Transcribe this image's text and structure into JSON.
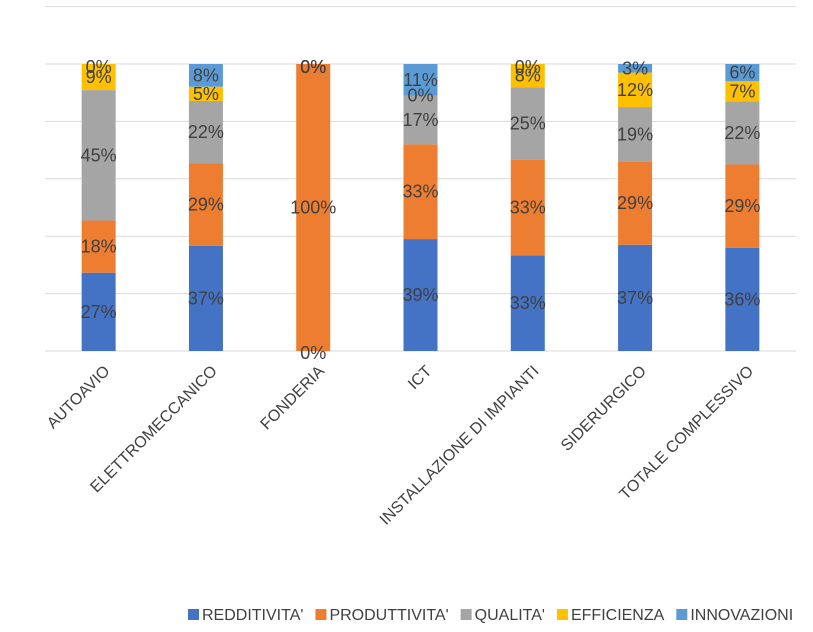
{
  "chart_data": {
    "type": "bar",
    "stacked": true,
    "normalized": true,
    "categories": [
      "AUTOAVIO",
      "ELETTROMECCANICO",
      "FONDERIA",
      "ICT",
      "INSTALLAZIONE DI IMPIANTI",
      "SIDERURGICO",
      "TOTALE COMPLESSIVO"
    ],
    "series": [
      {
        "name": "REDDITIVITA'",
        "color": "#4472C4",
        "values": [
          27,
          37,
          0,
          39,
          33,
          37,
          36
        ],
        "labels": [
          "27%",
          "37%",
          "0%",
          "39%",
          "33%",
          "37%",
          "36%"
        ]
      },
      {
        "name": "PRODUTTIVITA'",
        "color": "#ED7D31",
        "values": [
          18,
          29,
          100,
          33,
          33,
          29,
          29
        ],
        "labels": [
          "18%",
          "29%",
          "100%",
          "33%",
          "33%",
          "29%",
          "29%"
        ]
      },
      {
        "name": "QUALITA'",
        "color": "#A5A5A5",
        "values": [
          45,
          22,
          0,
          17,
          25,
          19,
          22
        ],
        "labels": [
          "45%",
          "22%",
          "0%",
          "17%",
          "25%",
          "19%",
          "22%"
        ]
      },
      {
        "name": "EFFICIENZA",
        "color": "#FFC000",
        "values": [
          9,
          5,
          0,
          0,
          8,
          12,
          7
        ],
        "labels": [
          "9%",
          "5%",
          "0%",
          "0%",
          "8%",
          "12%",
          "7%"
        ]
      },
      {
        "name": "INNOVAZIONI",
        "color": "#5B9BD5",
        "values": [
          0,
          8,
          0,
          11,
          0,
          3,
          6
        ],
        "labels": [
          "0%",
          "8%",
          "0%",
          "11%",
          "0%",
          "3%",
          "6%"
        ]
      }
    ],
    "ylim": [
      0,
      100
    ],
    "grid": true,
    "legend": "bottom"
  }
}
